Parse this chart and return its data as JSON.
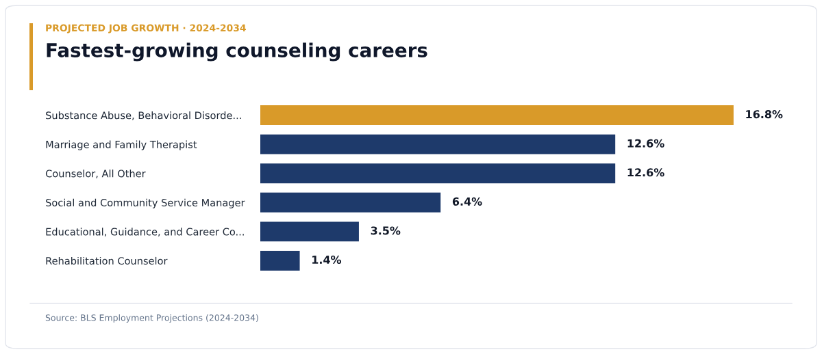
{
  "chart_data": {
    "type": "bar",
    "orientation": "horizontal",
    "title": "Fastest-growing counseling careers",
    "subtitle": "PROJECTED JOB GROWTH · 2024-2034",
    "categories": [
      "Substance Abuse, Behavioral Disorde...",
      "Marriage and Family Therapist",
      "Counselor, All Other",
      "Social and Community Service Manager",
      "Educational, Guidance, and Career Co...",
      "Rehabilitation Counselor"
    ],
    "values": [
      16.8,
      12.6,
      12.6,
      6.4,
      3.5,
      1.4
    ],
    "colors": [
      "#d99a29",
      "#1e3a6b",
      "#1e3a6b",
      "#1e3a6b",
      "#1e3a6b",
      "#1e3a6b"
    ],
    "value_labels": [
      "16.8%",
      "12.6%",
      "12.6%",
      "6.4%",
      "3.5%",
      "1.4%"
    ],
    "annotations": [
      "Source: BLS Employment Projections (2024-2034)"
    ],
    "grid": false,
    "legend": false
  }
}
